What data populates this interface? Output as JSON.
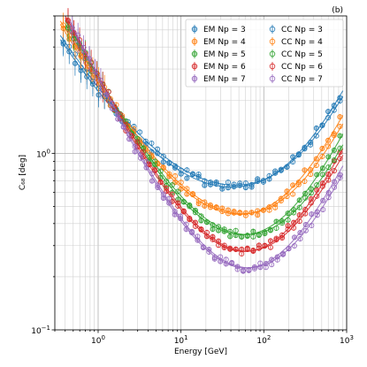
{
  "panel_label": "(b)",
  "colors": {
    "Np3": "#1f77b4",
    "Np4": "#ff7f0e",
    "Np5": "#2ca02c",
    "Np6": "#d62728",
    "Np7": "#9467bd"
  },
  "chart_data": {
    "type": "scatter",
    "xlabel": "Energy [GeV]",
    "ylabel": "C₆₈ [deg]",
    "xscale": "log",
    "yscale": "log",
    "xlim": [
      0.3,
      1000
    ],
    "ylim": [
      0.1,
      6
    ],
    "x_ticks": [
      {
        "value": 1,
        "base": "10",
        "exp": "0"
      },
      {
        "value": 10,
        "base": "10",
        "exp": "1"
      },
      {
        "value": 100,
        "base": "10",
        "exp": "2"
      },
      {
        "value": 1000,
        "base": "10",
        "exp": "3"
      }
    ],
    "y_ticks": [
      {
        "value": 0.1,
        "base": "10",
        "exp": "−1"
      },
      {
        "value": 1,
        "base": "10",
        "exp": "0"
      }
    ],
    "grid": true,
    "legend_position": "top-right",
    "legend_columns": 2,
    "series": [
      {
        "name": "EM Np = 3",
        "color_key": "Np3",
        "marker": "errorbar-circle",
        "fit": {
          "a": 1.8,
          "b": 0.45,
          "c": 0.002,
          "p": 0.75
        },
        "scatter": 0.05,
        "xmin": 0.35,
        "xmax": 900
      },
      {
        "name": "EM Np = 4",
        "color_key": "Np4",
        "marker": "errorbar-circle",
        "fit": {
          "a": 2.2,
          "b": 0.28,
          "c": 0.0015,
          "p": 0.8
        },
        "scatter": 0.05,
        "xmin": 0.35,
        "xmax": 900
      },
      {
        "name": "EM Np = 5",
        "color_key": "Np5",
        "marker": "errorbar-circle",
        "fit": {
          "a": 2.4,
          "b": 0.2,
          "c": 0.0012,
          "p": 0.85
        },
        "scatter": 0.05,
        "xmin": 0.4,
        "xmax": 900
      },
      {
        "name": "EM Np = 6",
        "color_key": "Np6",
        "marker": "errorbar-circle",
        "fit": {
          "a": 2.5,
          "b": 0.155,
          "c": 0.001,
          "p": 0.9
        },
        "scatter": 0.05,
        "xmin": 0.4,
        "xmax": 900
      },
      {
        "name": "EM Np = 7",
        "color_key": "Np7",
        "marker": "errorbar-circle",
        "fit": {
          "a": 2.5,
          "b": 0.125,
          "c": 0.0008,
          "p": 0.95
        },
        "scatter": 0.05,
        "xmin": 0.45,
        "xmax": 900
      },
      {
        "name": "CC Np = 3",
        "color_key": "Np3",
        "marker": "errorbar-open-circle",
        "fit": {
          "a": 1.9,
          "b": 0.47,
          "c": 0.0018,
          "p": 0.75
        },
        "scatter": 0.04,
        "xmin": 0.35,
        "xmax": 900
      },
      {
        "name": "CC Np = 4",
        "color_key": "Np4",
        "marker": "errorbar-open-circle",
        "fit": {
          "a": 2.3,
          "b": 0.29,
          "c": 0.0013,
          "p": 0.8
        },
        "scatter": 0.04,
        "xmin": 0.35,
        "xmax": 900
      },
      {
        "name": "CC Np = 5",
        "color_key": "Np5",
        "marker": "errorbar-open-circle",
        "fit": {
          "a": 2.5,
          "b": 0.21,
          "c": 0.001,
          "p": 0.85
        },
        "scatter": 0.04,
        "xmin": 0.4,
        "xmax": 900
      },
      {
        "name": "CC Np = 6",
        "color_key": "Np6",
        "marker": "errorbar-open-circle",
        "fit": {
          "a": 2.6,
          "b": 0.16,
          "c": 0.0009,
          "p": 0.9
        },
        "scatter": 0.04,
        "xmin": 0.4,
        "xmax": 900
      },
      {
        "name": "CC Np = 7",
        "color_key": "Np7",
        "marker": "errorbar-open-circle",
        "fit": {
          "a": 2.6,
          "b": 0.13,
          "c": 0.0007,
          "p": 0.95
        },
        "scatter": 0.04,
        "xmin": 0.45,
        "xmax": 900
      }
    ]
  }
}
